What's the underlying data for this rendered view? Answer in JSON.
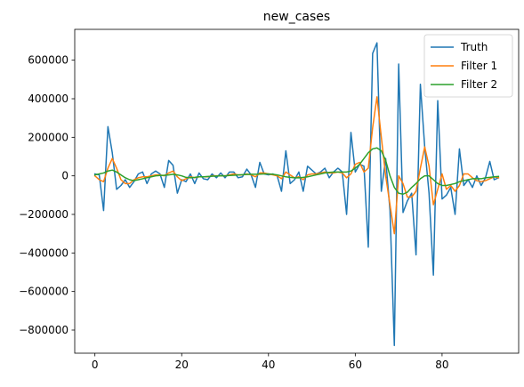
{
  "chart_data": {
    "type": "line",
    "title": "new_cases",
    "xlabel": "",
    "ylabel": "",
    "xlim": [
      -4.65,
      97.65
    ],
    "ylim": [
      -920000,
      760000
    ],
    "x_ticks": [
      0,
      20,
      40,
      60,
      80
    ],
    "x_tick_labels": [
      "0",
      "20",
      "40",
      "60",
      "80"
    ],
    "y_ticks": [
      -800000,
      -600000,
      -400000,
      -200000,
      0,
      200000,
      400000,
      600000
    ],
    "y_tick_labels": [
      "−800000",
      "−600000",
      "−400000",
      "−200000",
      "0",
      "200000",
      "400000",
      "600000"
    ],
    "grid": false,
    "legend": "top-right",
    "x": [
      0,
      1,
      2,
      3,
      4,
      5,
      6,
      7,
      8,
      9,
      10,
      11,
      12,
      13,
      14,
      15,
      16,
      17,
      18,
      19,
      20,
      21,
      22,
      23,
      24,
      25,
      26,
      27,
      28,
      29,
      30,
      31,
      32,
      33,
      34,
      35,
      36,
      37,
      38,
      39,
      40,
      41,
      42,
      43,
      44,
      45,
      46,
      47,
      48,
      49,
      50,
      51,
      52,
      53,
      54,
      55,
      56,
      57,
      58,
      59,
      60,
      61,
      62,
      63,
      64,
      65,
      66,
      67,
      68,
      69,
      70,
      71,
      72,
      73,
      74,
      75,
      76,
      77,
      78,
      79,
      80,
      81,
      82,
      83,
      84,
      85,
      86,
      87,
      88,
      89,
      90,
      91,
      92,
      93
    ],
    "series": [
      {
        "name": "Truth",
        "color": "#1f77b4",
        "values": [
          10000,
          5000,
          -180000,
          255000,
          120000,
          -70000,
          -50000,
          -20000,
          -60000,
          -30000,
          10000,
          20000,
          -40000,
          10000,
          25000,
          10000,
          -60000,
          80000,
          55000,
          -90000,
          -20000,
          -30000,
          10000,
          -40000,
          15000,
          -15000,
          -20000,
          10000,
          -10000,
          15000,
          -10000,
          20000,
          20000,
          -10000,
          -5000,
          35000,
          5000,
          -60000,
          70000,
          10000,
          5000,
          10000,
          0,
          -80000,
          130000,
          -40000,
          -20000,
          20000,
          -80000,
          50000,
          30000,
          10000,
          20000,
          40000,
          -10000,
          20000,
          40000,
          20000,
          -200000,
          225000,
          20000,
          60000,
          50000,
          -370000,
          635000,
          690000,
          -80000,
          90000,
          -180000,
          -880000,
          580000,
          -190000,
          -130000,
          -90000,
          -410000,
          475000,
          150000,
          -90000,
          -515000,
          390000,
          -120000,
          -100000,
          -60000,
          -200000,
          140000,
          -50000,
          -20000,
          -60000,
          0,
          -50000,
          -10000,
          75000,
          -20000,
          -10000
        ]
      },
      {
        "name": "Filter 1",
        "color": "#ff7f0e",
        "values": [
          0,
          -20000,
          -30000,
          40000,
          90000,
          40000,
          -20000,
          -40000,
          -40000,
          -20000,
          -10000,
          -5000,
          -5000,
          0,
          5000,
          5000,
          0,
          15000,
          25000,
          -5000,
          -25000,
          -15000,
          -5000,
          -10000,
          -5000,
          -5000,
          -5000,
          0,
          0,
          0,
          0,
          5000,
          10000,
          5000,
          5000,
          10000,
          5000,
          -5000,
          15000,
          15000,
          10000,
          5000,
          0,
          -15000,
          20000,
          5000,
          -10000,
          -5000,
          -20000,
          5000,
          10000,
          10000,
          15000,
          20000,
          15000,
          15000,
          20000,
          15000,
          -10000,
          10000,
          60000,
          70000,
          20000,
          40000,
          250000,
          410000,
          200000,
          0,
          -150000,
          -300000,
          0,
          -40000,
          -110000,
          -110000,
          -80000,
          40000,
          150000,
          50000,
          -150000,
          -70000,
          10000,
          -70000,
          -50000,
          -80000,
          -50000,
          10000,
          10000,
          -10000,
          -25000,
          -30000,
          -25000,
          -15000,
          -5000,
          -10000
        ]
      },
      {
        "name": "Filter 2",
        "color": "#2ca02c",
        "values": [
          5000,
          10000,
          15000,
          25000,
          30000,
          20000,
          5000,
          -10000,
          -20000,
          -25000,
          -20000,
          -15000,
          -10000,
          -5000,
          0,
          2000,
          3000,
          5000,
          8000,
          5000,
          0,
          -8000,
          -10000,
          -8000,
          -5000,
          -5000,
          -3000,
          -2000,
          -1000,
          0,
          0,
          2000,
          3000,
          5000,
          6000,
          7000,
          8000,
          8000,
          9000,
          10000,
          10000,
          8000,
          5000,
          0,
          -5000,
          -8000,
          -10000,
          -10000,
          -8000,
          -5000,
          0,
          5000,
          10000,
          15000,
          18000,
          20000,
          20000,
          20000,
          20000,
          25000,
          40000,
          60000,
          90000,
          120000,
          140000,
          145000,
          130000,
          80000,
          0,
          -60000,
          -90000,
          -95000,
          -85000,
          -60000,
          -40000,
          -15000,
          0,
          0,
          -20000,
          -40000,
          -50000,
          -50000,
          -45000,
          -40000,
          -30000,
          -25000,
          -20000,
          -15000,
          -15000,
          -15000,
          -10000,
          -8000,
          -5000,
          -3000
        ]
      }
    ]
  }
}
